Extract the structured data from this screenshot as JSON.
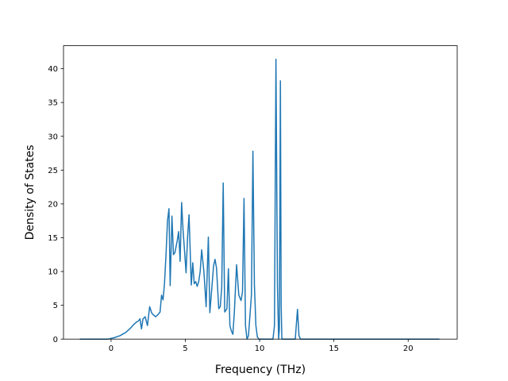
{
  "chart_data": {
    "type": "line",
    "title": "",
    "xlabel": "Frequency (THz)",
    "ylabel": "Density of States",
    "xlim": [
      -3.2,
      23.3
    ],
    "ylim": [
      0,
      43.4
    ],
    "xticks": [
      0,
      5,
      10,
      15,
      20
    ],
    "yticks": [
      0,
      5,
      10,
      15,
      20,
      25,
      30,
      35,
      40
    ],
    "grid": false,
    "legend": "none",
    "line_color": "#1f77b4",
    "series": [
      {
        "x": [
          -2.1,
          -1.0,
          -0.2,
          0.2,
          0.6,
          1.0,
          1.3,
          1.5,
          1.7,
          1.85,
          1.95,
          2.05,
          2.15,
          2.3,
          2.45,
          2.6,
          2.75,
          2.9,
          3.0,
          3.15,
          3.3,
          3.4,
          3.5,
          3.6,
          3.7,
          3.8,
          3.9,
          3.98,
          4.1,
          4.2,
          4.3,
          4.45,
          4.55,
          4.65,
          4.75,
          4.85,
          4.95,
          5.05,
          5.15,
          5.25,
          5.4,
          5.5,
          5.6,
          5.7,
          5.8,
          5.9,
          6.0,
          6.1,
          6.25,
          6.4,
          6.55,
          6.65,
          6.8,
          6.9,
          7.0,
          7.1,
          7.25,
          7.35,
          7.45,
          7.55,
          7.65,
          7.8,
          7.9,
          8.0,
          8.1,
          8.2,
          8.3,
          8.45,
          8.6,
          8.75,
          8.85,
          8.95,
          9.05,
          9.15,
          9.25,
          9.35,
          9.45,
          9.55,
          9.65,
          9.75,
          9.85,
          9.95,
          10.05,
          10.15,
          10.3,
          10.5,
          10.7,
          10.9,
          11.0,
          11.1,
          11.2,
          11.28,
          11.33,
          11.4,
          11.45,
          11.5,
          11.6,
          11.8,
          12.0,
          12.2,
          12.4,
          12.55,
          12.65,
          12.75,
          12.85,
          13.5,
          16.0,
          19.0,
          22.1
        ],
        "y": [
          0,
          0,
          0,
          0.2,
          0.5,
          1.0,
          1.6,
          2.1,
          2.5,
          2.7,
          3.0,
          1.5,
          3.0,
          3.3,
          2.0,
          4.8,
          3.8,
          3.5,
          3.3,
          3.6,
          4.0,
          6.5,
          5.8,
          8.3,
          12.5,
          17.5,
          19.3,
          7.9,
          18.2,
          12.5,
          12.8,
          14.5,
          15.9,
          11.5,
          20.2,
          16.0,
          13.0,
          9.8,
          15.0,
          18.4,
          8.0,
          11.3,
          8.2,
          8.5,
          7.8,
          8.5,
          10.0,
          13.2,
          10.0,
          4.8,
          15.1,
          3.9,
          8.0,
          10.8,
          11.8,
          10.5,
          4.5,
          4.8,
          7.6,
          23.1,
          4.0,
          4.5,
          10.4,
          2.0,
          1.2,
          0.7,
          4.0,
          11.0,
          6.5,
          5.7,
          7.0,
          20.8,
          2.0,
          0.0,
          0.5,
          3.5,
          6.5,
          27.8,
          8.0,
          2.0,
          0.3,
          0,
          0,
          0,
          0,
          0,
          0,
          0,
          2.0,
          41.4,
          8.0,
          0.0,
          1.5,
          38.2,
          5.0,
          0,
          0,
          0,
          0,
          0,
          0,
          4.4,
          0.5,
          0,
          0,
          0,
          0,
          0,
          0
        ]
      }
    ]
  }
}
